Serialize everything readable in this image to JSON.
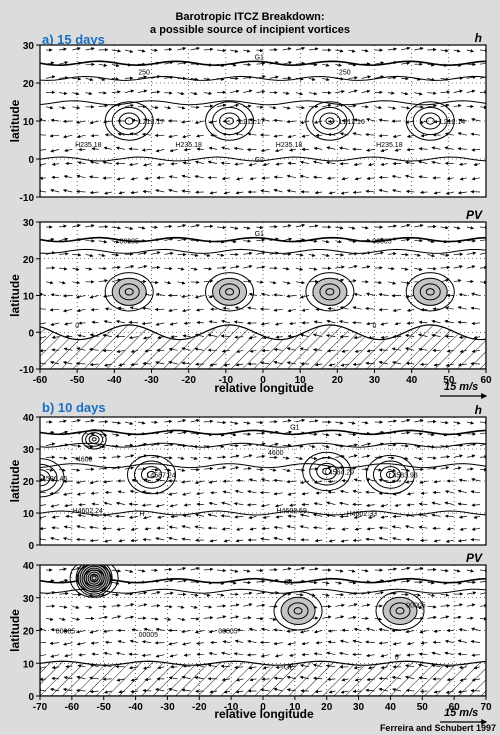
{
  "title_line1": "Barotropic ITCZ Breakdown:",
  "title_line2": "a possible source of incipient vortices",
  "credit": "Ferreira and Schubert 1997",
  "colors": {
    "heading": "#1a6fc4",
    "background": "#dcdcdc",
    "panel": "#ffffff",
    "ink": "#000000",
    "pv_fill": "#c4c4c4"
  },
  "sections": [
    {
      "label": "a) 15 days",
      "xlabel": "relative longitude",
      "arrow_label": "15 m/s",
      "xticks": [
        -60,
        -50,
        -40,
        -30,
        -20,
        -10,
        0,
        10,
        20,
        30,
        40,
        50,
        60
      ]
    },
    {
      "label": "b) 10 days",
      "xlabel": "relative longitude",
      "arrow_label": "15 m/s",
      "xticks": [
        -70,
        -60,
        -50,
        -40,
        -30,
        -20,
        -10,
        0,
        10,
        20,
        30,
        40,
        50,
        60,
        70
      ]
    }
  ],
  "chart_data": [
    {
      "type": "contour",
      "panel": "a-h",
      "field_label": "h",
      "ylabel": "latitude",
      "xlim": [
        -60,
        60
      ],
      "ylim": [
        -10,
        30
      ],
      "yticks": [
        -10,
        0,
        10,
        20,
        30
      ],
      "grid": true,
      "hatched_below": null,
      "contour_labels": [
        {
          "x": -32,
          "y": 23,
          "text": "250"
        },
        {
          "x": 22,
          "y": 23,
          "text": "250"
        },
        {
          "x": -1,
          "y": 27,
          "text": "G1"
        },
        {
          "x": -1,
          "y": 0,
          "text": "G2"
        }
      ],
      "centers": [
        {
          "x": -36,
          "y": 10,
          "label": "L",
          "value": "212.17",
          "lx": -30,
          "ly": 10
        },
        {
          "x": -9,
          "y": 10,
          "label": "L",
          "value": "212.17",
          "lx": -3,
          "ly": 10
        },
        {
          "x": 18,
          "y": 10,
          "label": "L",
          "value": "212.16",
          "lx": 24,
          "ly": 10
        },
        {
          "x": 45,
          "y": 10,
          "label": "L",
          "value": "212.14",
          "lx": 51,
          "ly": 10
        },
        {
          "x": -47,
          "y": 4,
          "label": "H",
          "value": "235.18",
          "lx": -47,
          "ly": 4
        },
        {
          "x": -20,
          "y": 4,
          "label": "H",
          "value": "235.18",
          "lx": -20,
          "ly": 4
        },
        {
          "x": 7,
          "y": 4,
          "label": "H",
          "value": "235.18",
          "lx": 7,
          "ly": 4
        },
        {
          "x": 34,
          "y": 4,
          "label": "H",
          "value": "235.18",
          "lx": 34,
          "ly": 4
        }
      ]
    },
    {
      "type": "contour",
      "panel": "a-pv",
      "field_label": "PV",
      "ylabel": "latitude",
      "xlim": [
        -60,
        60
      ],
      "ylim": [
        -10,
        30
      ],
      "yticks": [
        -10,
        0,
        10,
        20,
        30
      ],
      "grid": true,
      "hatched_below": 0,
      "contour_labels": [
        {
          "x": -36,
          "y": 25,
          "text": "00005"
        },
        {
          "x": 32,
          "y": 25,
          "text": "00005"
        },
        {
          "x": -1,
          "y": 27,
          "text": "G1"
        },
        {
          "x": -50,
          "y": 2,
          "text": "0"
        },
        {
          "x": 30,
          "y": 2,
          "text": "0"
        }
      ],
      "centers": [
        {
          "x": -36,
          "y": 11,
          "label": "",
          "value": "",
          "lx": -36,
          "ly": 11
        },
        {
          "x": -9,
          "y": 11,
          "label": "",
          "value": "",
          "lx": -9,
          "ly": 11
        },
        {
          "x": 18,
          "y": 11,
          "label": "",
          "value": "",
          "lx": 18,
          "ly": 11
        },
        {
          "x": 45,
          "y": 11,
          "label": "",
          "value": "",
          "lx": 45,
          "ly": 11
        }
      ]
    },
    {
      "type": "contour",
      "panel": "b-h",
      "field_label": "h",
      "ylabel": "latitude",
      "xlim": [
        -70,
        70
      ],
      "ylim": [
        0,
        40
      ],
      "yticks": [
        0,
        10,
        20,
        30,
        40
      ],
      "grid": true,
      "hatched_below": null,
      "contour_labels": [
        {
          "x": -56,
          "y": 27,
          "text": "4600"
        },
        {
          "x": 4,
          "y": 29,
          "text": "4600"
        },
        {
          "x": 10,
          "y": 37,
          "text": "G1"
        }
      ],
      "centers": [
        {
          "x": -53,
          "y": 33,
          "label": "",
          "value": "",
          "lx": -53,
          "ly": 33
        },
        {
          "x": -70,
          "y": 21,
          "label": "L",
          "value": "4586.45",
          "lx": -66,
          "ly": 21
        },
        {
          "x": -35,
          "y": 22,
          "label": "L",
          "value": "4587.24",
          "lx": -32,
          "ly": 22
        },
        {
          "x": 20,
          "y": 23,
          "label": "L",
          "value": "4584.29",
          "lx": 24,
          "ly": 23
        },
        {
          "x": 40,
          "y": 22,
          "label": "L",
          "value": "4583.93",
          "lx": 44,
          "ly": 22
        },
        {
          "x": -58,
          "y": 11,
          "label": "H",
          "value": "4602.24",
          "lx": -55,
          "ly": 11
        },
        {
          "x": -38,
          "y": 10,
          "label": "H",
          "value": "",
          "lx": -38,
          "ly": 10
        },
        {
          "x": 6,
          "y": 11,
          "label": "H",
          "value": "4602.59",
          "lx": 9,
          "ly": 11
        },
        {
          "x": 28,
          "y": 10,
          "label": "H",
          "value": "4602.33",
          "lx": 31,
          "ly": 10
        }
      ]
    },
    {
      "type": "contour",
      "panel": "b-pv",
      "field_label": "PV",
      "ylabel": "latitude",
      "xlim": [
        -70,
        70
      ],
      "ylim": [
        0,
        40
      ],
      "yticks": [
        0,
        10,
        20,
        30,
        40
      ],
      "grid": true,
      "hatched_below": 10,
      "contour_labels": [
        {
          "x": -62,
          "y": 20,
          "text": "00005"
        },
        {
          "x": -36,
          "y": 19,
          "text": "00005"
        },
        {
          "x": -11,
          "y": 20,
          "text": "00005"
        },
        {
          "x": 48,
          "y": 28,
          "text": "00005"
        },
        {
          "x": 8,
          "y": 35,
          "text": "G1"
        },
        {
          "x": 8,
          "y": 9,
          "text": "G2"
        },
        {
          "x": 42,
          "y": 12,
          "text": "0"
        }
      ],
      "centers": [
        {
          "x": -53,
          "y": 36,
          "label": "",
          "value": "",
          "lx": -53,
          "ly": 36
        },
        {
          "x": 11,
          "y": 26,
          "label": "",
          "value": "",
          "lx": 11,
          "ly": 26
        },
        {
          "x": 43,
          "y": 26,
          "label": "",
          "value": "",
          "lx": 43,
          "ly": 26
        }
      ]
    }
  ]
}
